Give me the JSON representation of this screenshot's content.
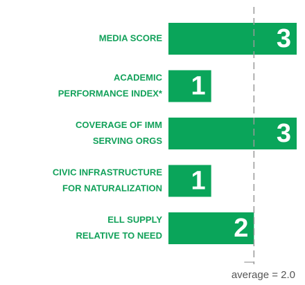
{
  "chart_data": {
    "type": "bar",
    "orientation": "horizontal",
    "categories": [
      [
        "MEDIA SCORE"
      ],
      [
        "ACADEMIC",
        "PERFORMANCE INDEX*"
      ],
      [
        "COVERAGE OF IMM",
        "SERVING ORGS"
      ],
      [
        "CIVIC INFRASTRUCTURE",
        "FOR NATURALIZATION"
      ],
      [
        "ELL SUPPLY",
        "RELATIVE TO NEED"
      ]
    ],
    "values": [
      3,
      1,
      3,
      1,
      2
    ],
    "color": "#0aa55a",
    "label_color": "#12a15a",
    "xlim": [
      0,
      3
    ],
    "reference_line": {
      "value": 2,
      "label": "average = 2.0"
    }
  }
}
